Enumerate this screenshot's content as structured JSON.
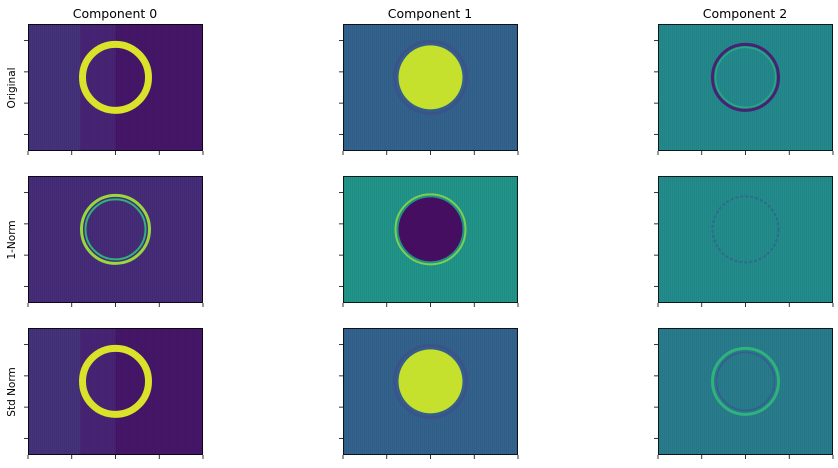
{
  "figure": {
    "column_titles": [
      "Component 0",
      "Component 1",
      "Component 2"
    ],
    "row_labels": [
      "Original",
      "1-Norm",
      "Std Norm"
    ]
  },
  "chart_data": {
    "type": "heatmap",
    "layout": "3x3 image grid",
    "colormap": "viridis",
    "tick_labels_shown": false,
    "x_tick_count": 5,
    "y_tick_count": 4,
    "panels": [
      {
        "row": "Original",
        "column": "Component 0",
        "pattern": "ring",
        "background": 0.13,
        "feature": 0.95,
        "gradient": "left-to-right darkening"
      },
      {
        "row": "Original",
        "column": "Component 1",
        "pattern": "filled-disk",
        "background": 0.32,
        "feature": 0.92
      },
      {
        "row": "Original",
        "column": "Component 2",
        "pattern": "thin-dark-ring",
        "background": 0.47,
        "feature": 0.12
      },
      {
        "row": "1-Norm",
        "column": "Component 0",
        "pattern": "double-ring",
        "background": 0.15,
        "feature": 0.85
      },
      {
        "row": "1-Norm",
        "column": "Component 1",
        "pattern": "dark-disk",
        "background": 0.52,
        "feature": 0.05
      },
      {
        "row": "1-Norm",
        "column": "Component 2",
        "pattern": "faint-ring",
        "background": 0.48,
        "feature": 0.35
      },
      {
        "row": "Std Norm",
        "column": "Component 0",
        "pattern": "ring",
        "background": 0.13,
        "feature": 0.95,
        "gradient": "left-to-right darkening"
      },
      {
        "row": "Std Norm",
        "column": "Component 1",
        "pattern": "filled-disk",
        "background": 0.32,
        "feature": 0.92
      },
      {
        "row": "Std Norm",
        "column": "Component 2",
        "pattern": "green-ring",
        "background": 0.42,
        "feature": 0.65
      }
    ]
  }
}
